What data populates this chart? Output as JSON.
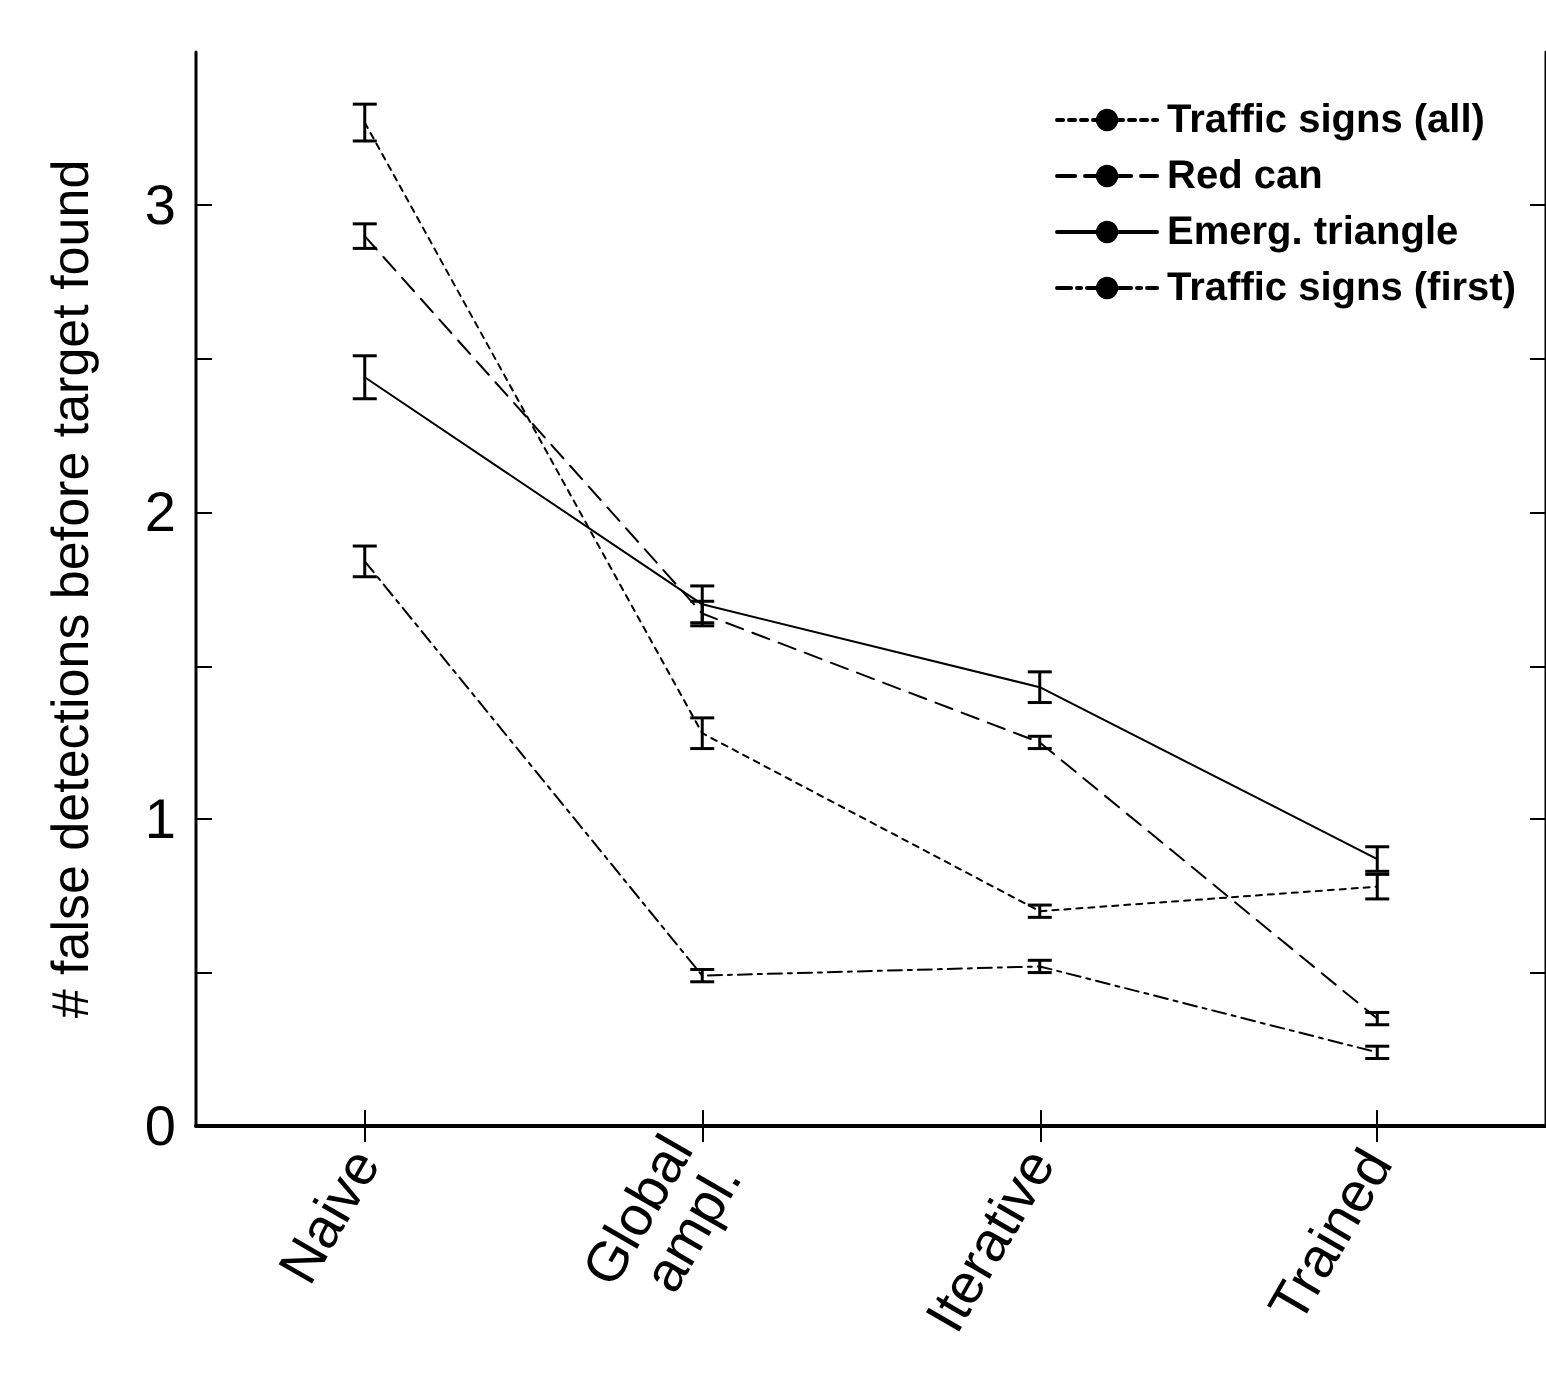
{
  "chart_data": {
    "type": "line",
    "ylabel": "# false detections before target found",
    "categories": [
      "Naive",
      "Global\nampl.",
      "Iterative",
      "Trained"
    ],
    "ylim": [
      0,
      3.5
    ],
    "yticks": [
      0,
      {
        "value": 0.5,
        "label": null
      },
      1,
      {
        "value": 1.5,
        "label": null
      },
      2,
      {
        "value": 2.5,
        "label": null
      },
      3
    ],
    "grid": false,
    "legend": "top right",
    "marker": "none",
    "series": [
      {
        "name": "Traffic signs (all)",
        "color": "#000000",
        "line_style": "dotted",
        "values": [
          3.27,
          1.28,
          0.7,
          0.78
        ],
        "errors": [
          0.06,
          0.05,
          0.02,
          0.04
        ]
      },
      {
        "name": "Red can",
        "color": "#000000",
        "line_style": "dashed",
        "values": [
          2.9,
          1.67,
          1.25,
          0.35
        ],
        "errors": [
          0.04,
          0.04,
          0.02,
          0.02
        ]
      },
      {
        "name": "Emerg. triangle",
        "color": "#000000",
        "line_style": "solid",
        "values": [
          2.44,
          1.7,
          1.43,
          0.87
        ],
        "errors": [
          0.07,
          0.06,
          0.05,
          0.04
        ]
      },
      {
        "name": "Traffic signs (first)",
        "color": "#000000",
        "line_style": "dashdot",
        "values": [
          1.84,
          0.49,
          0.52,
          0.24
        ],
        "errors": [
          0.05,
          0.02,
          0.02,
          0.02
        ]
      }
    ]
  }
}
